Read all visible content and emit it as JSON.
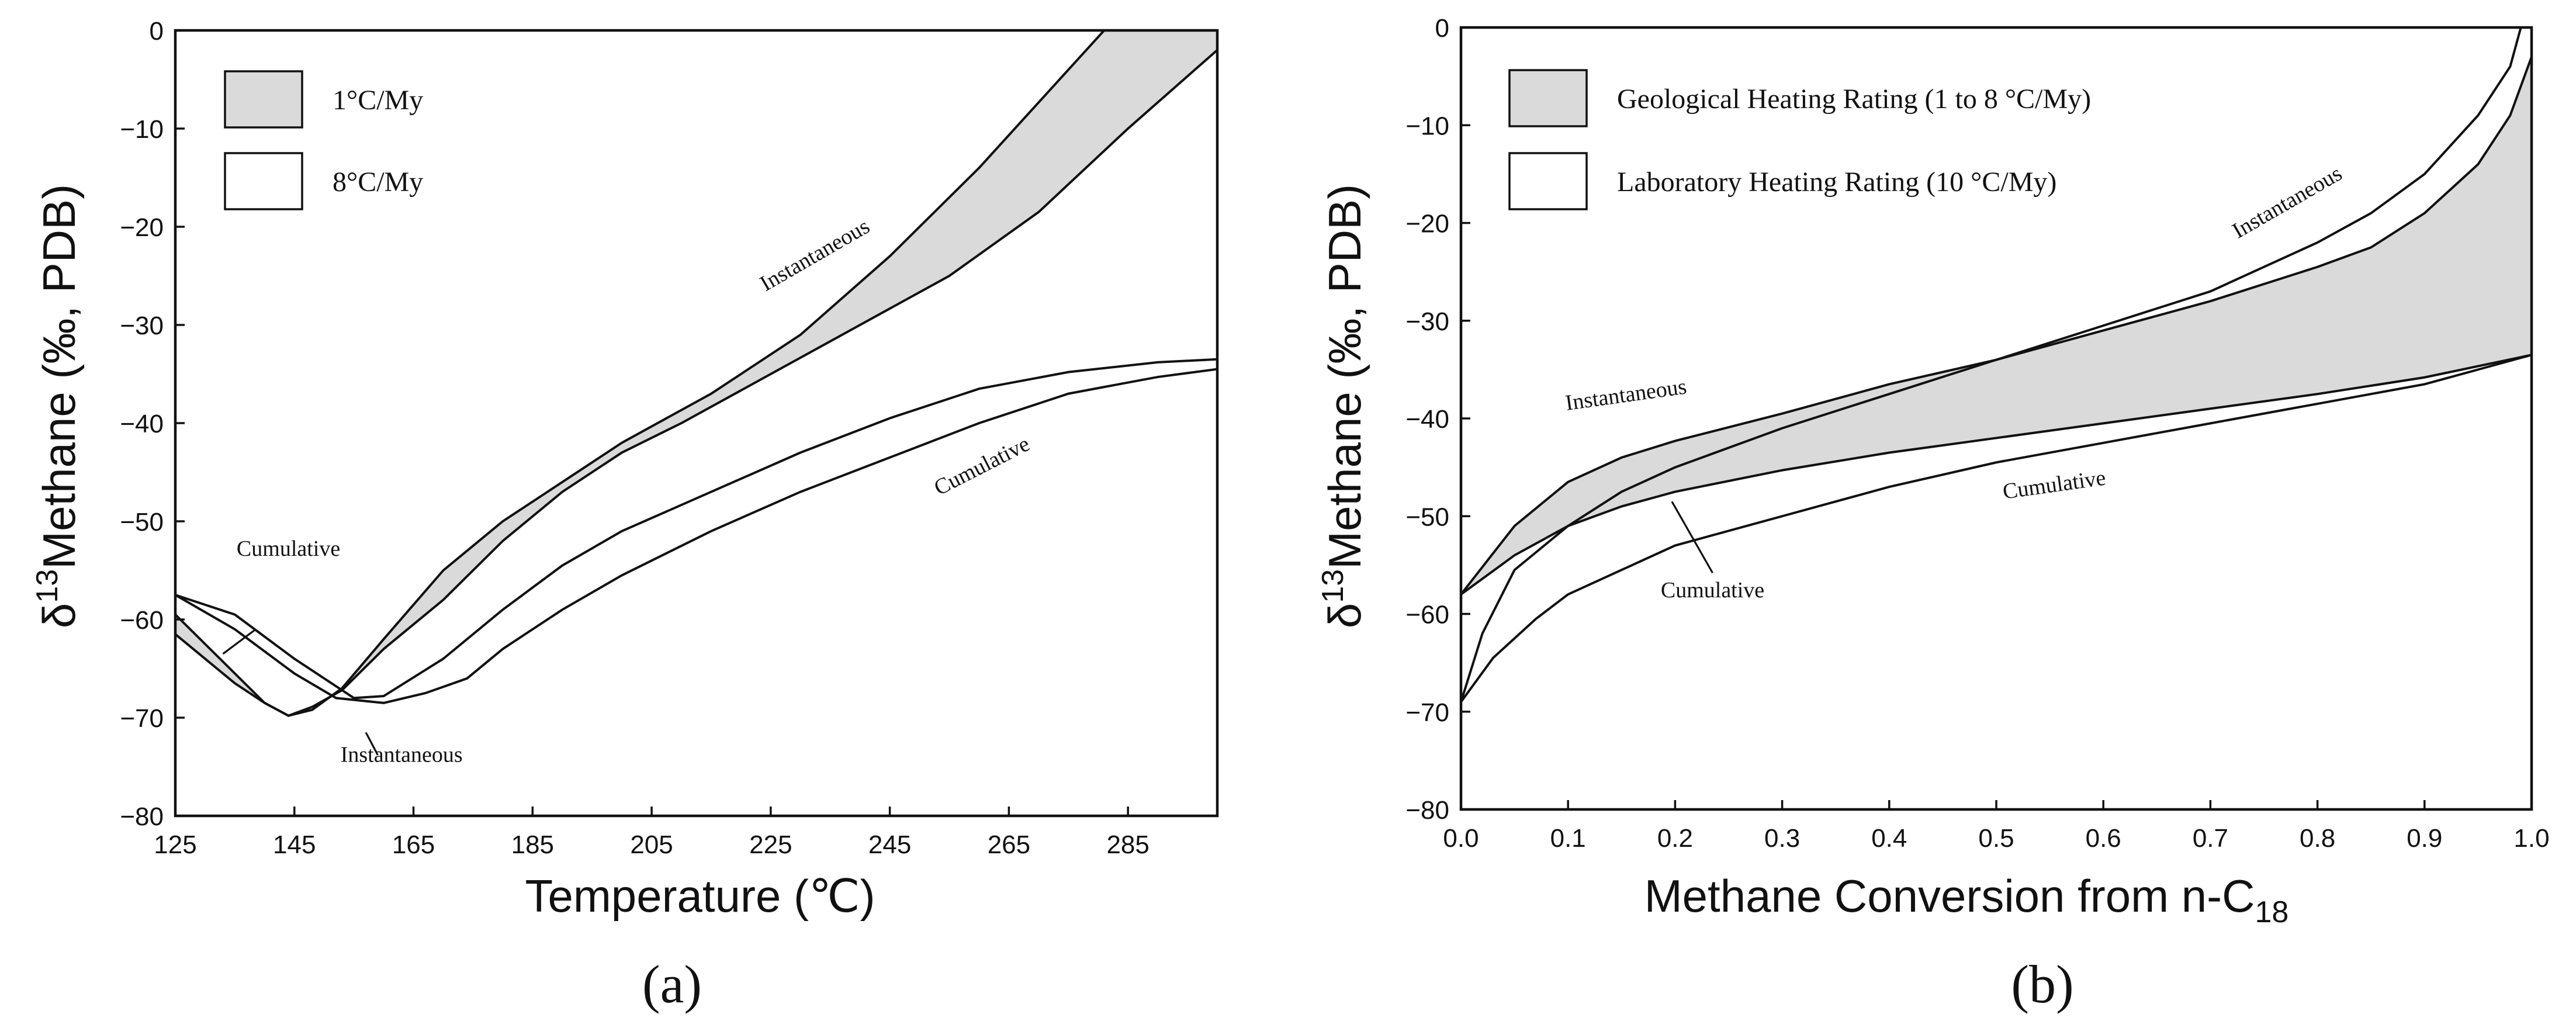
{
  "chart_data": [
    {
      "panel_label": "(a)",
      "type": "line",
      "xlabel": "Temperature (℃)",
      "ylabel": "δ13Methane (‰, PDB)",
      "ylabel_parts": {
        "main": "δ",
        "sup": "13",
        "rest": "Methane (‰, PDB)"
      },
      "xlim": [
        125,
        300
      ],
      "ylim": [
        -80,
        0
      ],
      "xticks": [
        125,
        145,
        165,
        185,
        205,
        225,
        245,
        265,
        285
      ],
      "xtick_labels": [
        "125",
        "145",
        "165",
        "185",
        "205",
        "225",
        "245",
        "265",
        "285"
      ],
      "yticks": [
        0,
        -10,
        -20,
        -30,
        -40,
        -50,
        -60,
        -70,
        -80
      ],
      "ytick_labels": [
        "0",
        "−10",
        "−20",
        "−30",
        "−40",
        "−50",
        "−60",
        "−70",
        "−80"
      ],
      "legend": {
        "placement": "top-left",
        "entries": [
          {
            "label": "1°C/My",
            "fill": "#dadada"
          },
          {
            "label": "8°C/My",
            "fill": "#ffffff"
          }
        ]
      },
      "bands": [
        {
          "legend": "1°C/My",
          "upper": [
            [
              125,
              -59.5
            ],
            [
              130,
              -62.5
            ],
            [
              135,
              -65.5
            ],
            [
              140,
              -68.5
            ],
            [
              144,
              -69.8
            ],
            [
              148,
              -69.2
            ],
            [
              153,
              -67
            ],
            [
              160,
              -62
            ],
            [
              170,
              -55
            ],
            [
              180,
              -50
            ],
            [
              190,
              -46
            ],
            [
              200,
              -42
            ],
            [
              215,
              -37
            ],
            [
              230,
              -31
            ],
            [
              245,
              -23
            ],
            [
              260,
              -14
            ],
            [
              272,
              -6
            ],
            [
              281,
              0
            ],
            [
              300,
              0
            ]
          ],
          "lower": [
            [
              125,
              -61.5
            ],
            [
              130,
              -64
            ],
            [
              135,
              -66.5
            ],
            [
              140,
              -68.5
            ],
            [
              144,
              -69.8
            ],
            [
              148,
              -68.9
            ],
            [
              153,
              -67.2
            ],
            [
              160,
              -63
            ],
            [
              170,
              -58
            ],
            [
              180,
              -52
            ],
            [
              190,
              -47
            ],
            [
              200,
              -43
            ],
            [
              210,
              -40
            ],
            [
              225,
              -35
            ],
            [
              240,
              -30
            ],
            [
              255,
              -25
            ],
            [
              270,
              -18.5
            ],
            [
              285,
              -10
            ],
            [
              300,
              -2
            ]
          ]
        },
        {
          "legend": "8°C/My",
          "upper": [
            [
              125,
              -57.5
            ],
            [
              135,
              -59.5
            ],
            [
              145,
              -64
            ],
            [
              155,
              -68
            ],
            [
              160,
              -67.8
            ],
            [
              170,
              -64
            ],
            [
              180,
              -59
            ],
            [
              190,
              -54.5
            ],
            [
              200,
              -51
            ],
            [
              215,
              -47
            ],
            [
              230,
              -43
            ],
            [
              245,
              -39.5
            ],
            [
              260,
              -36.5
            ],
            [
              275,
              -34.8
            ],
            [
              290,
              -33.8
            ],
            [
              300,
              -33.5
            ]
          ],
          "lower": [
            [
              125,
              -57.5
            ],
            [
              135,
              -61
            ],
            [
              145,
              -65.5
            ],
            [
              152,
              -68
            ],
            [
              160,
              -68.5
            ],
            [
              167,
              -67.5
            ],
            [
              174,
              -66
            ],
            [
              180,
              -63
            ],
            [
              190,
              -59
            ],
            [
              200,
              -55.5
            ],
            [
              215,
              -51
            ],
            [
              230,
              -47
            ],
            [
              245,
              -43.5
            ],
            [
              260,
              -40
            ],
            [
              275,
              -37
            ],
            [
              290,
              -35.3
            ],
            [
              300,
              -34.5
            ]
          ]
        }
      ],
      "annotations": [
        {
          "text": "Instantaneous",
          "x": 233,
          "y": -23.5,
          "angle": -30
        },
        {
          "text": "Cumulative",
          "x": 261,
          "y": -45,
          "angle": -27
        },
        {
          "text": "Cumulative",
          "x": 144,
          "y": -53.5,
          "angle": 0
        },
        {
          "text": "Instantaneous",
          "x": 163,
          "y": -74.5,
          "angle": 0
        }
      ],
      "leaders": [
        {
          "from": [
            138.5,
            -61
          ],
          "to": [
            133,
            -63.5
          ]
        },
        {
          "from": [
            157,
            -71.5
          ],
          "to": [
            159,
            -73.8
          ]
        }
      ]
    },
    {
      "panel_label": "(b)",
      "type": "line",
      "xlabel_parts": {
        "main": "Methane Conversion from n-C",
        "sub": "18"
      },
      "ylabel": "δ13Methane (‰, PDB)",
      "ylabel_parts": {
        "main": "δ",
        "sup": "13",
        "rest": "Methane (‰, PDB)"
      },
      "xlim": [
        0,
        1
      ],
      "ylim": [
        -80,
        0
      ],
      "xticks": [
        0,
        0.1,
        0.2,
        0.3,
        0.4,
        0.5,
        0.6,
        0.7,
        0.8,
        0.9,
        1.0
      ],
      "xtick_labels": [
        "0.0",
        "0.1",
        "0.2",
        "0.3",
        "0.4",
        "0.5",
        "0.6",
        "0.7",
        "0.8",
        "0.9",
        "1.0"
      ],
      "yticks": [
        0,
        -10,
        -20,
        -30,
        -40,
        -50,
        -60,
        -70,
        -80
      ],
      "ytick_labels": [
        "0",
        "−10",
        "−20",
        "−30",
        "−40",
        "−50",
        "−60",
        "−70",
        "−80"
      ],
      "legend": {
        "placement": "top-left",
        "entries": [
          {
            "label": "Geological Heating Rating (1 to 8 °C/My)",
            "fill": "#dadada"
          },
          {
            "label": "Laboratory Heating Rating (10 °C/My)",
            "fill": "#ffffff"
          }
        ]
      },
      "bands": [
        {
          "legend": "Geological Heating Rating (1 to 8 °C/My)",
          "upper": [
            [
              0,
              -58
            ],
            [
              0.05,
              -51
            ],
            [
              0.1,
              -46.5
            ],
            [
              0.15,
              -44
            ],
            [
              0.2,
              -42.3
            ],
            [
              0.3,
              -39.5
            ],
            [
              0.4,
              -36.5
            ],
            [
              0.5,
              -34
            ],
            [
              0.6,
              -31
            ],
            [
              0.7,
              -28
            ],
            [
              0.8,
              -24.5
            ],
            [
              0.85,
              -22.5
            ],
            [
              0.9,
              -19
            ],
            [
              0.95,
              -14
            ],
            [
              0.98,
              -9
            ],
            [
              1.0,
              -3
            ]
          ],
          "lower": [
            [
              0,
              -58
            ],
            [
              0.05,
              -54
            ],
            [
              0.1,
              -51
            ],
            [
              0.15,
              -49
            ],
            [
              0.2,
              -47.5
            ],
            [
              0.3,
              -45.3
            ],
            [
              0.4,
              -43.5
            ],
            [
              0.5,
              -42
            ],
            [
              0.6,
              -40.5
            ],
            [
              0.7,
              -39
            ],
            [
              0.8,
              -37.5
            ],
            [
              0.9,
              -35.8
            ],
            [
              1.0,
              -33.5
            ]
          ]
        },
        {
          "legend": "Laboratory Heating Rating (10 °C/My)",
          "upper": [
            [
              0,
              -69
            ],
            [
              0.02,
              -62
            ],
            [
              0.05,
              -55.5
            ],
            [
              0.1,
              -51
            ],
            [
              0.15,
              -47.5
            ],
            [
              0.2,
              -45
            ],
            [
              0.3,
              -41
            ],
            [
              0.4,
              -37.5
            ],
            [
              0.5,
              -34
            ],
            [
              0.6,
              -30.5
            ],
            [
              0.7,
              -27
            ],
            [
              0.8,
              -22
            ],
            [
              0.85,
              -19
            ],
            [
              0.9,
              -15
            ],
            [
              0.95,
              -9
            ],
            [
              0.98,
              -4
            ],
            [
              0.99,
              0
            ]
          ],
          "lower": [
            [
              0,
              -69
            ],
            [
              0.03,
              -64.5
            ],
            [
              0.07,
              -60.5
            ],
            [
              0.1,
              -58
            ],
            [
              0.15,
              -55.5
            ],
            [
              0.2,
              -53
            ],
            [
              0.3,
              -50
            ],
            [
              0.4,
              -47
            ],
            [
              0.5,
              -44.5
            ],
            [
              0.6,
              -42.5
            ],
            [
              0.7,
              -40.5
            ],
            [
              0.8,
              -38.5
            ],
            [
              0.9,
              -36.5
            ],
            [
              0.95,
              -35
            ],
            [
              1.0,
              -33.5
            ]
          ]
        }
      ],
      "annotations": [
        {
          "text": "Instantaneous",
          "x": 0.155,
          "y": -38.3,
          "angle": -8
        },
        {
          "text": "Instantaneous",
          "x": 0.775,
          "y": -18.5,
          "angle": -30
        },
        {
          "text": "Cumulative",
          "x": 0.555,
          "y": -47.5,
          "angle": -8
        },
        {
          "text": "Cumulative",
          "x": 0.235,
          "y": -58.3,
          "angle": 0
        }
      ],
      "leaders": [
        {
          "from": [
            0.197,
            -48.5
          ],
          "to": [
            0.235,
            -55.8
          ]
        }
      ]
    }
  ]
}
